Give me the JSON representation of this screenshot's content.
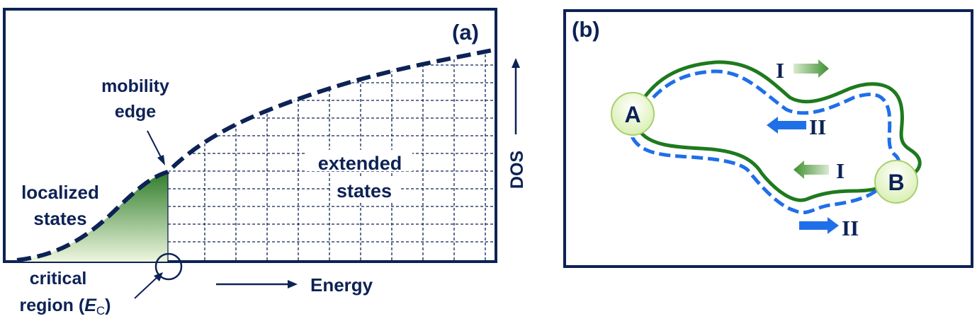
{
  "panel_a": {
    "label": "(a)",
    "mobility_edge_line1": "mobility",
    "mobility_edge_line2": "edge",
    "localized_line1": "localized",
    "localized_line2": "states",
    "extended_line1": "extended",
    "extended_line2": "states",
    "critical_line1": "critical",
    "critical_line2_prefix": "region (",
    "critical_symbol": "E",
    "critical_subscript": "C",
    "critical_line2_suffix": ")",
    "x_axis_label": "Energy",
    "y_axis_label": "DOS"
  },
  "panel_b": {
    "label": "(b)",
    "point_a": "A",
    "point_b": "B",
    "top_path_label": "I",
    "top_inner_label": "II",
    "lower_inner_label": "I",
    "bottom_path_label": "II"
  },
  "colors": {
    "frame": "#0d2255",
    "green": "#1e7a1e",
    "blue": "#1f6fe8",
    "node_fill": "#e6f5c4",
    "node_stroke": "#a9cf6f"
  }
}
